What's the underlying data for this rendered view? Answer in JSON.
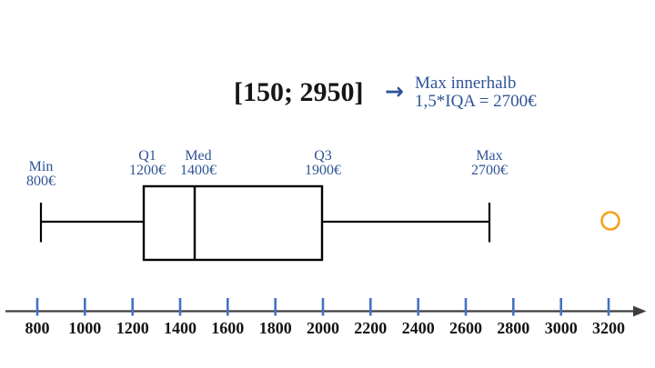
{
  "chart_data": {
    "type": "boxplot",
    "orientation": "horizontal",
    "title": "[150; 2950]",
    "note": {
      "arrow": "→",
      "lines": [
        "Max innerhalb",
        "1,5*IQA = 2700€"
      ]
    },
    "unit": "€",
    "stats": {
      "min": 800,
      "q1": 1200,
      "median": 1400,
      "q3": 1900,
      "whisker_max": 2700,
      "outlier": 3200
    },
    "labels": [
      {
        "name": "Min",
        "value": "800€"
      },
      {
        "name": "Q1",
        "value": "1200€"
      },
      {
        "name": "Med",
        "value": "1400€"
      },
      {
        "name": "Q3",
        "value": "1900€"
      },
      {
        "name": "Max",
        "value": "2700€"
      }
    ],
    "axis": {
      "range": [
        800,
        3200
      ],
      "step": 200,
      "ticks": [
        800,
        1000,
        1200,
        1400,
        1600,
        1800,
        2000,
        2200,
        2400,
        2600,
        2800,
        3000,
        3200
      ],
      "grid": false
    },
    "colors": {
      "label_blue": "#2F5496",
      "tick_blue": "#4472C4",
      "axis_line": "#3F3F3F",
      "box_stroke": "#000000",
      "outlier_orange": "#F5A21B"
    }
  }
}
